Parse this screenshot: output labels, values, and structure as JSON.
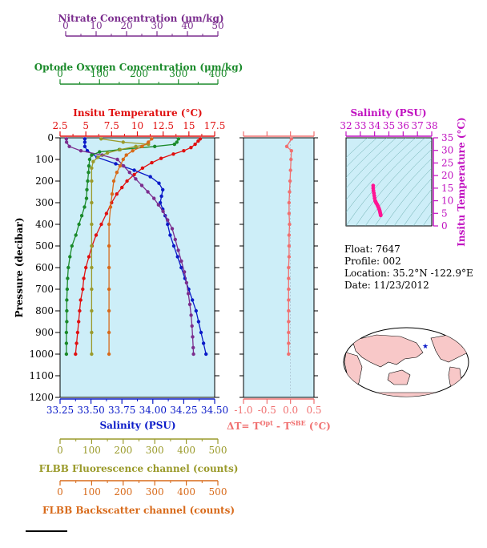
{
  "colors": {
    "nitrate": "#7b2d8e",
    "oxygen": "#1a8a2a",
    "temperature": "#e01010",
    "salinity": "#0a1ac8",
    "fluorescence": "#9a9a2a",
    "backscatter": "#d86a1a",
    "dt": "#f07070",
    "ts_salinity": "#c010c0",
    "ts_temperature": "#c010c0",
    "ts_points": "#ff1493",
    "panel_bg": "#cdeef8",
    "land": "#f8c8c8"
  },
  "axes": {
    "nitrate": {
      "title": "Nitrate Concentration (μm/kg)",
      "ticks": [
        "0",
        "10",
        "20",
        "30",
        "40",
        "50"
      ]
    },
    "oxygen": {
      "title": "Optode Oxygen Concentration (μm/kg)",
      "ticks": [
        "0",
        "100",
        "200",
        "300",
        "400"
      ]
    },
    "temperature": {
      "title": "Insitu Temperature (°C)",
      "ticks": [
        "2.5",
        "5",
        "7.5",
        "10",
        "12.5",
        "15",
        "17.5"
      ]
    },
    "pressure": {
      "title": "Pressure (decibar)",
      "ticks": [
        "0",
        "100",
        "200",
        "300",
        "400",
        "500",
        "600",
        "700",
        "800",
        "900",
        "1000",
        "1100",
        "1200"
      ]
    },
    "salinity": {
      "title": "Salinity (PSU)",
      "ticks": [
        "33.25",
        "33.50",
        "33.75",
        "34.00",
        "34.25",
        "34.50"
      ]
    },
    "fluorescence": {
      "title": "FLBB Fluorescence channel (counts)",
      "ticks": [
        "0",
        "100",
        "200",
        "300",
        "400",
        "500"
      ]
    },
    "backscatter": {
      "title": "FLBB Backscatter channel (counts)",
      "ticks": [
        "0",
        "100",
        "200",
        "300",
        "400",
        "500"
      ]
    },
    "dt": {
      "title_prefix": "ΔT= T",
      "sup1": "Opt",
      "mid": " - T",
      "sup2": "SBE",
      "suffix": " (°C)",
      "ticks": [
        "-1.0",
        "-0.5",
        "0.0",
        "0.5"
      ]
    },
    "ts_salinity": {
      "title": "Salinity (PSU)",
      "ticks": [
        "32",
        "33",
        "34",
        "35",
        "36",
        "37",
        "38"
      ]
    },
    "ts_temperature": {
      "title": "Insitu Temperature (°C)",
      "ticks": [
        "0",
        "5",
        "10",
        "15",
        "20",
        "25",
        "30",
        "35"
      ]
    }
  },
  "info": {
    "float": "Float:  7647",
    "profile": "Profile:  002",
    "location": "Location:  35.2°N  -122.9°E",
    "date": "Date:  11/23/2012"
  },
  "chart_data": {
    "type": "line",
    "y_axis": {
      "label": "Pressure (decibar)",
      "range": [
        0,
        1200
      ],
      "inverted": true
    },
    "series": [
      {
        "name": "Insitu Temperature",
        "unit": "°C",
        "range": [
          2.5,
          17.5
        ],
        "points": [
          [
            16.1,
            5
          ],
          [
            15.9,
            15
          ],
          [
            15.6,
            30
          ],
          [
            15.2,
            45
          ],
          [
            14.5,
            60
          ],
          [
            13.5,
            75
          ],
          [
            12.3,
            95
          ],
          [
            11.4,
            115
          ],
          [
            10.5,
            140
          ],
          [
            9.7,
            170
          ],
          [
            9.0,
            200
          ],
          [
            8.5,
            230
          ],
          [
            8.0,
            260
          ],
          [
            7.5,
            300
          ],
          [
            7.0,
            350
          ],
          [
            6.5,
            400
          ],
          [
            6.0,
            450
          ],
          [
            5.6,
            500
          ],
          [
            5.3,
            550
          ],
          [
            5.0,
            600
          ],
          [
            4.8,
            650
          ],
          [
            4.7,
            700
          ],
          [
            4.5,
            750
          ],
          [
            4.4,
            800
          ],
          [
            4.3,
            850
          ],
          [
            4.2,
            900
          ],
          [
            4.1,
            950
          ],
          [
            4.0,
            1000
          ]
        ]
      },
      {
        "name": "Salinity",
        "unit": "PSU",
        "range": [
          33.25,
          34.5
        ],
        "points": [
          [
            33.45,
            5
          ],
          [
            33.45,
            20
          ],
          [
            33.45,
            40
          ],
          [
            33.47,
            60
          ],
          [
            33.55,
            90
          ],
          [
            33.7,
            120
          ],
          [
            33.85,
            150
          ],
          [
            33.98,
            180
          ],
          [
            34.05,
            210
          ],
          [
            34.08,
            240
          ],
          [
            34.07,
            270
          ],
          [
            34.06,
            300
          ],
          [
            34.08,
            330
          ],
          [
            34.1,
            360
          ],
          [
            34.12,
            400
          ],
          [
            34.14,
            450
          ],
          [
            34.17,
            500
          ],
          [
            34.2,
            550
          ],
          [
            34.23,
            600
          ],
          [
            34.26,
            650
          ],
          [
            34.29,
            700
          ],
          [
            34.32,
            750
          ],
          [
            34.35,
            800
          ],
          [
            34.37,
            850
          ],
          [
            34.39,
            900
          ],
          [
            34.41,
            950
          ],
          [
            34.43,
            1000
          ]
        ]
      },
      {
        "name": "Nitrate",
        "unit": "μm/kg",
        "range": [
          0,
          50
        ],
        "points": [
          [
            0.2,
            5
          ],
          [
            0.3,
            20
          ],
          [
            1.2,
            40
          ],
          [
            5,
            60
          ],
          [
            12,
            80
          ],
          [
            17,
            100
          ],
          [
            19,
            130
          ],
          [
            21,
            160
          ],
          [
            23,
            190
          ],
          [
            25,
            220
          ],
          [
            27,
            250
          ],
          [
            29,
            280
          ],
          [
            30.5,
            310
          ],
          [
            32,
            340
          ],
          [
            33.5,
            380
          ],
          [
            35,
            420
          ],
          [
            36,
            470
          ],
          [
            37,
            520
          ],
          [
            38,
            570
          ],
          [
            39,
            620
          ],
          [
            39.7,
            670
          ],
          [
            40.3,
            720
          ],
          [
            40.8,
            770
          ],
          [
            41.2,
            820
          ],
          [
            41.5,
            870
          ],
          [
            41.7,
            920
          ],
          [
            41.9,
            970
          ],
          [
            42,
            1000
          ]
        ]
      },
      {
        "name": "Optode Oxygen",
        "unit": "μm/kg",
        "range": [
          0,
          400
        ],
        "points": [
          [
            300,
            5
          ],
          [
            296,
            20
          ],
          [
            290,
            30
          ],
          [
            240,
            40
          ],
          [
            150,
            55
          ],
          [
            100,
            65
          ],
          [
            80,
            80
          ],
          [
            75,
            100
          ],
          [
            73,
            130
          ],
          [
            72,
            160
          ],
          [
            70,
            200
          ],
          [
            68,
            240
          ],
          [
            67,
            280
          ],
          [
            62,
            320
          ],
          [
            55,
            360
          ],
          [
            48,
            400
          ],
          [
            40,
            450
          ],
          [
            30,
            500
          ],
          [
            25,
            550
          ],
          [
            21,
            600
          ],
          [
            19,
            650
          ],
          [
            18,
            700
          ],
          [
            17,
            750
          ],
          [
            17,
            800
          ],
          [
            17,
            850
          ],
          [
            16,
            900
          ],
          [
            16,
            950
          ],
          [
            16,
            1000
          ]
        ]
      },
      {
        "name": "FLBB Fluorescence",
        "unit": "counts",
        "range": [
          0,
          500
        ],
        "points": [
          [
            130,
            5
          ],
          [
            200,
            20
          ],
          [
            280,
            30
          ],
          [
            240,
            40
          ],
          [
            190,
            55
          ],
          [
            150,
            70
          ],
          [
            120,
            90
          ],
          [
            105,
            110
          ],
          [
            100,
            140
          ],
          [
            100,
            200
          ],
          [
            100,
            300
          ],
          [
            100,
            400
          ],
          [
            100,
            500
          ],
          [
            100,
            600
          ],
          [
            100,
            700
          ],
          [
            100,
            800
          ],
          [
            100,
            900
          ],
          [
            100,
            1000
          ]
        ]
      },
      {
        "name": "FLBB Backscatter",
        "unit": "counts",
        "range": [
          0,
          500
        ],
        "points": [
          [
            290,
            5
          ],
          [
            280,
            20
          ],
          [
            260,
            40
          ],
          [
            230,
            60
          ],
          [
            210,
            80
          ],
          [
            200,
            100
          ],
          [
            190,
            130
          ],
          [
            180,
            160
          ],
          [
            170,
            200
          ],
          [
            165,
            260
          ],
          [
            160,
            320
          ],
          [
            155,
            400
          ],
          [
            155,
            500
          ],
          [
            155,
            600
          ],
          [
            155,
            700
          ],
          [
            155,
            800
          ],
          [
            155,
            900
          ],
          [
            155,
            1000
          ]
        ]
      },
      {
        "name": "ΔT",
        "unit": "°C",
        "range": [
          -1.0,
          0.5
        ],
        "points": [
          [
            0.02,
            5
          ],
          [
            -0.08,
            40
          ],
          [
            0.02,
            60
          ],
          [
            0.01,
            100
          ],
          [
            0.0,
            150
          ],
          [
            -0.01,
            200
          ],
          [
            -0.02,
            250
          ],
          [
            -0.03,
            300
          ],
          [
            -0.03,
            350
          ],
          [
            -0.02,
            400
          ],
          [
            -0.03,
            450
          ],
          [
            -0.03,
            500
          ],
          [
            -0.03,
            550
          ],
          [
            -0.04,
            600
          ],
          [
            -0.04,
            650
          ],
          [
            -0.04,
            700
          ],
          [
            -0.04,
            750
          ],
          [
            -0.04,
            800
          ],
          [
            -0.04,
            850
          ],
          [
            -0.04,
            900
          ],
          [
            -0.04,
            950
          ],
          [
            -0.04,
            1000
          ]
        ]
      }
    ],
    "ts_plot": {
      "type": "scatter",
      "x_range": [
        32,
        38
      ],
      "y_range": [
        0,
        35
      ],
      "points": [
        [
          33.9,
          16
        ],
        [
          33.9,
          15
        ],
        [
          33.92,
          14
        ],
        [
          33.95,
          13
        ],
        [
          33.98,
          12
        ],
        [
          34.0,
          11
        ],
        [
          34.04,
          10
        ],
        [
          34.08,
          9.5
        ],
        [
          34.12,
          9
        ],
        [
          34.18,
          8.5
        ],
        [
          34.22,
          8
        ],
        [
          34.26,
          7.5
        ],
        [
          34.3,
          7
        ],
        [
          34.33,
          6.5
        ],
        [
          34.36,
          6
        ],
        [
          34.38,
          5.5
        ],
        [
          34.4,
          5
        ],
        [
          34.42,
          4.5
        ],
        [
          34.43,
          4.2
        ]
      ]
    }
  }
}
